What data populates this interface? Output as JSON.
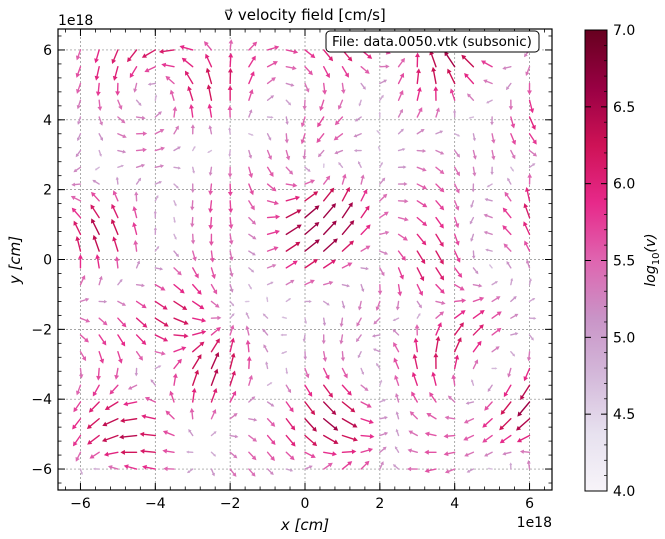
{
  "chart_data": {
    "type": "quiver",
    "title": "v⃗ velocity field [cm/s]",
    "xlabel": "x [cm]",
    "ylabel": "y [cm]",
    "x_offset_label": "1e18",
    "y_offset_label": "1e18",
    "xlim": [
      -6.6,
      6.6
    ],
    "ylim": [
      -6.6,
      6.6
    ],
    "x_ticks": [
      -6,
      -4,
      -2,
      0,
      2,
      4,
      6
    ],
    "x_tick_labels": [
      "−6",
      "−4",
      "−2",
      "0",
      "2",
      "4",
      "6"
    ],
    "y_ticks": [
      -6,
      -4,
      -2,
      0,
      2,
      4,
      6
    ],
    "y_tick_labels": [
      "−6",
      "−4",
      "−2",
      "0",
      "2",
      "4",
      "6"
    ],
    "grid": true,
    "annotation": "File: data.0050.vtk (subsonic)",
    "colorbar": {
      "label": "log10(v)",
      "min": 4.0,
      "max": 7.0,
      "ticks": [
        4.0,
        4.5,
        5.0,
        5.5,
        6.0,
        6.5,
        7.0
      ],
      "tick_labels": [
        "4.0",
        "4.5",
        "5.0",
        "5.5",
        "6.0",
        "6.5",
        "7.0"
      ],
      "colormap": [
        "#f7f4f9",
        "#e7e1ef",
        "#d4b9da",
        "#c994c7",
        "#df65b0",
        "#e7298a",
        "#ce1256",
        "#980043",
        "#67001f"
      ]
    },
    "grid_points": {
      "x_start": -6.0,
      "x_end": 6.0,
      "y_start": -6.0,
      "y_end": 6.0,
      "count_x": 25,
      "count_y": 26
    }
  }
}
